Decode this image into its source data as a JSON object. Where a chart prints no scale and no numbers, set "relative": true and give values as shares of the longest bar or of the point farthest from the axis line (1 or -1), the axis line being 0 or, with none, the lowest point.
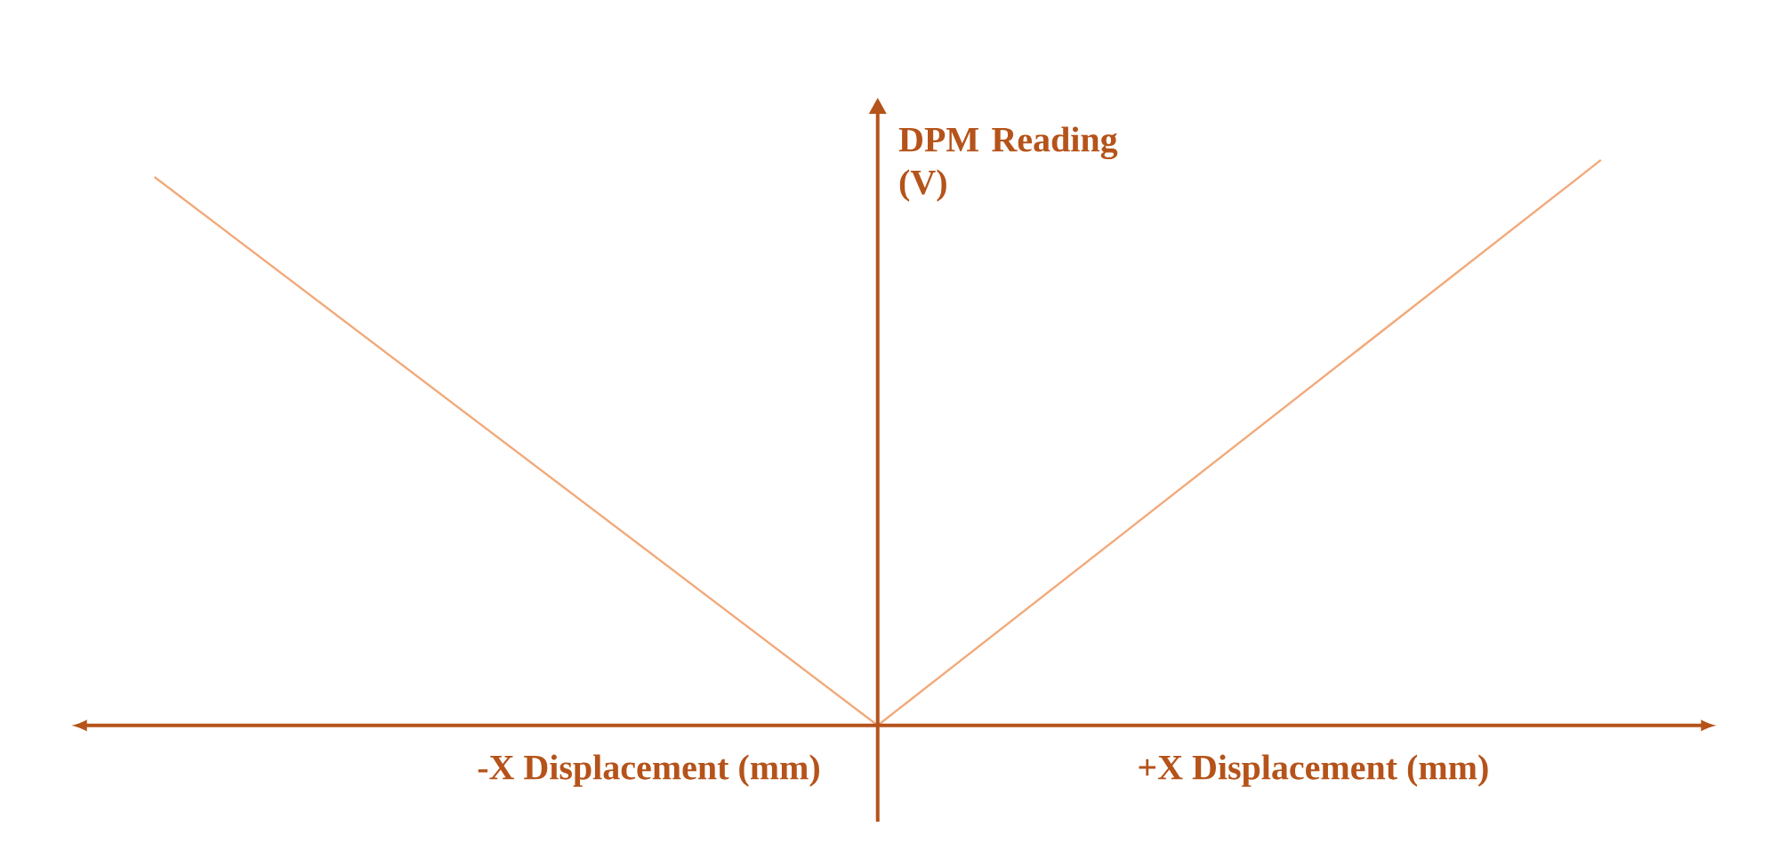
{
  "chart_data": {
    "type": "line",
    "relative": true,
    "xlabel": "+X Displacement (mm)",
    "ylabel": "DPM Reading (V)",
    "annotations": [
      "-X Displacement (mm)"
    ],
    "categories": [
      null,
      null,
      null
    ],
    "series": [
      {
        "color": "#f2aa7a",
        "values": [
          0.97,
          0,
          1
        ]
      }
    ]
  }
}
